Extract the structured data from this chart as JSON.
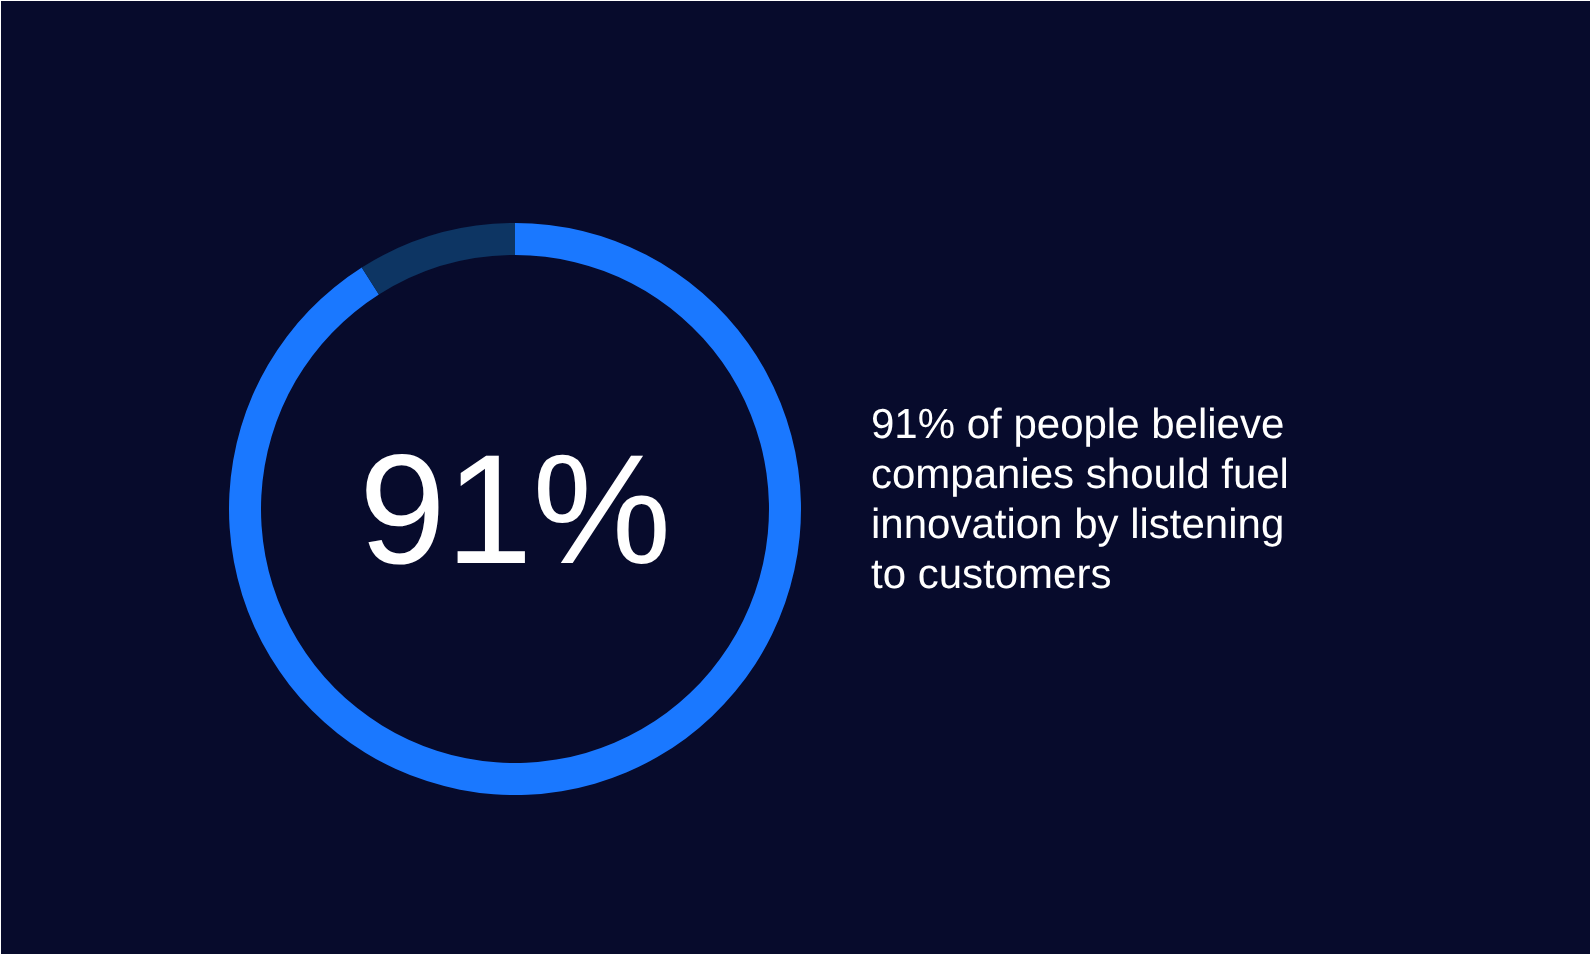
{
  "chart_data": {
    "type": "donut",
    "categories": [
      null,
      null
    ],
    "values": [
      91,
      9
    ],
    "colors": [
      "#1a78ff",
      "#0d3563"
    ],
    "value_labels": [
      "91%",
      null
    ],
    "annotations": [
      "91% of people believe companies should fuel innovation by listening to customers"
    ]
  }
}
